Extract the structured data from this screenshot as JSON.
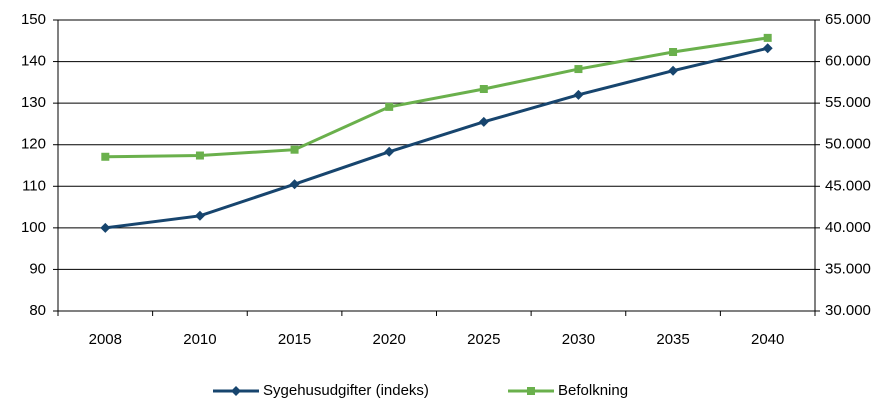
{
  "chart_data": {
    "type": "line",
    "categories": [
      "2008",
      "2010",
      "2015",
      "2020",
      "2025",
      "2030",
      "2035",
      "2040"
    ],
    "series": [
      {
        "name": "Sygehusudgifter (indeks)",
        "color": "#17456e",
        "marker": "diamond",
        "values": [
          100,
          102.9,
          110.5,
          118.3,
          125.5,
          132,
          137.8,
          143.2
        ]
      },
      {
        "name": "Befolkning",
        "color": "#6ab04c",
        "marker": "square",
        "axis": "y2",
        "values": [
          48550,
          48700,
          49400,
          54550,
          56700,
          59100,
          61150,
          62850
        ]
      }
    ],
    "ylim": [
      80,
      150
    ],
    "yticks": [
      80,
      90,
      100,
      110,
      120,
      130,
      140,
      150
    ],
    "y2lim": [
      30000,
      65000
    ],
    "y2ticks": [
      {
        "value": 30000,
        "label": "30.000"
      },
      {
        "value": 35000,
        "label": "35.000"
      },
      {
        "value": 40000,
        "label": "40.000"
      },
      {
        "value": 45000,
        "label": "45.000"
      },
      {
        "value": 50000,
        "label": "50.000"
      },
      {
        "value": 55000,
        "label": "55.000"
      },
      {
        "value": 60000,
        "label": "60.000"
      },
      {
        "value": 65000,
        "label": "65.000"
      }
    ],
    "grid": true,
    "legend": "bottom"
  }
}
